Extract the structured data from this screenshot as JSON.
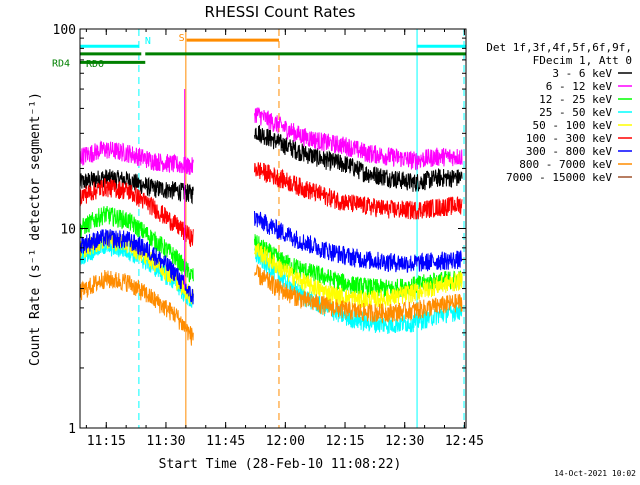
{
  "chart_data": {
    "type": "line",
    "title": "RHESSI Count Rates",
    "xlabel": "Start Time (28-Feb-10 11:08:22)",
    "ylabel": "Count Rate (s⁻¹ detector segment⁻¹)",
    "yscale": "log",
    "ylim": [
      1,
      100
    ],
    "xlim_minutes": [
      0,
      97
    ],
    "xticks": [
      {
        "t": 6.6,
        "label": "11:15"
      },
      {
        "t": 21.6,
        "label": "11:30"
      },
      {
        "t": 36.6,
        "label": "11:45"
      },
      {
        "t": 51.6,
        "label": "12:00"
      },
      {
        "t": 66.6,
        "label": "12:15"
      },
      {
        "t": 81.6,
        "label": "12:30"
      },
      {
        "t": 96.6,
        "label": "12:45"
      }
    ],
    "yticks": [
      {
        "v": 1,
        "label": "1"
      },
      {
        "v": 10,
        "label": "10"
      },
      {
        "v": 100,
        "label": "100"
      }
    ],
    "legend_header": [
      "Det 1f,3f,4f,5f,6f,9f,",
      "FDecim 1, Att 0"
    ],
    "legend_position": "right",
    "series": [
      {
        "name": "3 - 6 keV",
        "color": "#000000",
        "x": [
          0,
          6,
          12,
          18,
          24,
          28,
          44,
          50,
          56,
          62,
          67,
          72,
          78,
          84,
          90,
          96
        ],
        "y": [
          17,
          18,
          17.5,
          16,
          15.5,
          15,
          31,
          27,
          24,
          22,
          21,
          19,
          18,
          17,
          18,
          18
        ]
      },
      {
        "name": "6 - 12 keV",
        "color": "#ff00ff",
        "x": [
          0,
          6,
          12,
          18,
          24,
          28,
          44,
          50,
          56,
          62,
          67,
          72,
          78,
          84,
          90,
          96
        ],
        "y": [
          23,
          25,
          24,
          22,
          21,
          20.5,
          38,
          33,
          29,
          27,
          26,
          24,
          23,
          22,
          23,
          23
        ]
      },
      {
        "name": "12 - 25 keV",
        "color": "#00ff00",
        "x": [
          0,
          6,
          12,
          18,
          24,
          28,
          44,
          50,
          56,
          62,
          67,
          72,
          78,
          84,
          90,
          96
        ],
        "y": [
          10,
          11.8,
          11,
          9,
          7.2,
          5.8,
          8.5,
          7,
          6.2,
          5.7,
          5.3,
          5.1,
          5,
          5.2,
          5.5,
          5.6
        ]
      },
      {
        "name": "25 - 50 keV",
        "color": "#00ffff",
        "x": [
          0,
          6,
          12,
          18,
          24,
          28,
          44,
          50,
          56,
          62,
          67,
          72,
          78,
          84,
          90,
          96
        ],
        "y": [
          7.3,
          8.2,
          7.8,
          6.6,
          5.4,
          4.3,
          7.5,
          5.8,
          4.6,
          4,
          3.6,
          3.4,
          3.3,
          3.4,
          3.7,
          3.9
        ]
      },
      {
        "name": "50 - 100 keV",
        "color": "#ffff00",
        "x": [
          0,
          6,
          12,
          18,
          24,
          28,
          44,
          50,
          56,
          62,
          67,
          72,
          78,
          84,
          90,
          96
        ],
        "y": [
          7.8,
          8.8,
          8.4,
          7,
          5.6,
          4.6,
          8,
          6.4,
          5.4,
          4.8,
          4.5,
          4.4,
          4.5,
          4.8,
          5.2,
          5.5
        ]
      },
      {
        "name": "100 - 300 keV",
        "color": "#ff0000",
        "x": [
          0,
          6,
          12,
          18,
          24,
          28,
          44,
          50,
          56,
          62,
          67,
          72,
          78,
          84,
          90,
          96
        ],
        "y": [
          14.5,
          16.2,
          15.5,
          13,
          10.5,
          9,
          20,
          18,
          16,
          14.5,
          13.5,
          13,
          12.5,
          12.4,
          12.8,
          13.2
        ]
      },
      {
        "name": "300 - 800 keV",
        "color": "#0000ff",
        "x": [
          0,
          6,
          12,
          18,
          24,
          28,
          44,
          50,
          56,
          62,
          67,
          72,
          78,
          84,
          90,
          96
        ],
        "y": [
          8.3,
          9,
          8.8,
          7.6,
          6,
          4.6,
          11.3,
          9.8,
          8.6,
          7.8,
          7.3,
          7,
          6.8,
          6.7,
          6.9,
          7
        ]
      },
      {
        "name": "800 - 7000 keV",
        "color": "#ff8c00",
        "x": [
          0,
          6,
          12,
          18,
          24,
          28,
          44,
          50,
          56,
          62,
          67,
          72,
          78,
          84,
          90,
          96
        ],
        "y": [
          4.8,
          5.6,
          5.4,
          4.5,
          3.7,
          2.9,
          6,
          5,
          4.4,
          4.1,
          3.9,
          3.8,
          3.8,
          3.9,
          4.1,
          4.3
        ]
      },
      {
        "name": "7000 - 15000 keV",
        "color": "#a0522d",
        "x": [],
        "y": []
      }
    ],
    "annotation_bars": [
      {
        "label": "",
        "color": "#00ffff",
        "y": 82,
        "t_start": 0,
        "t_end": 14.8
      },
      {
        "label": "N",
        "color": "#00ffff",
        "y": 82,
        "t_start": 0,
        "t_end": 0
      },
      {
        "label": "",
        "color": "#00ffff",
        "y": 82,
        "t_start": 84.7,
        "t_end": 97
      },
      {
        "label": "S",
        "color": "#ff8c00",
        "y": 88,
        "t_start": 26.8,
        "t_end": 50
      },
      {
        "label": "RDO",
        "color": "#008000",
        "y": 75,
        "t_start": 0,
        "t_end": 15.4
      },
      {
        "label": "RD4",
        "color": "#008000",
        "y": 68,
        "t_start": 0,
        "t_end": 16.4
      }
    ],
    "green_bar": {
      "color": "#008000",
      "y": 75,
      "t_start": 16.4,
      "t_end": 97
    },
    "vertical_lines": [
      {
        "t": 0.0,
        "color": "#00ffff",
        "style": "solid"
      },
      {
        "t": 14.8,
        "color": "#00ffff",
        "style": "dashed"
      },
      {
        "t": 26.6,
        "color": "#ff8c00",
        "style": "solid"
      },
      {
        "t": 50.0,
        "color": "#ff8c00",
        "style": "dashed"
      },
      {
        "t": 84.7,
        "color": "#00ffff",
        "style": "solid"
      },
      {
        "t": 96.5,
        "color": "#00ffff",
        "style": "dashed"
      }
    ],
    "gap_minutes": [
      28.5,
      43.8
    ],
    "grid": false
  },
  "footer": {
    "timestamp": "14-Oct-2021 10:02"
  }
}
